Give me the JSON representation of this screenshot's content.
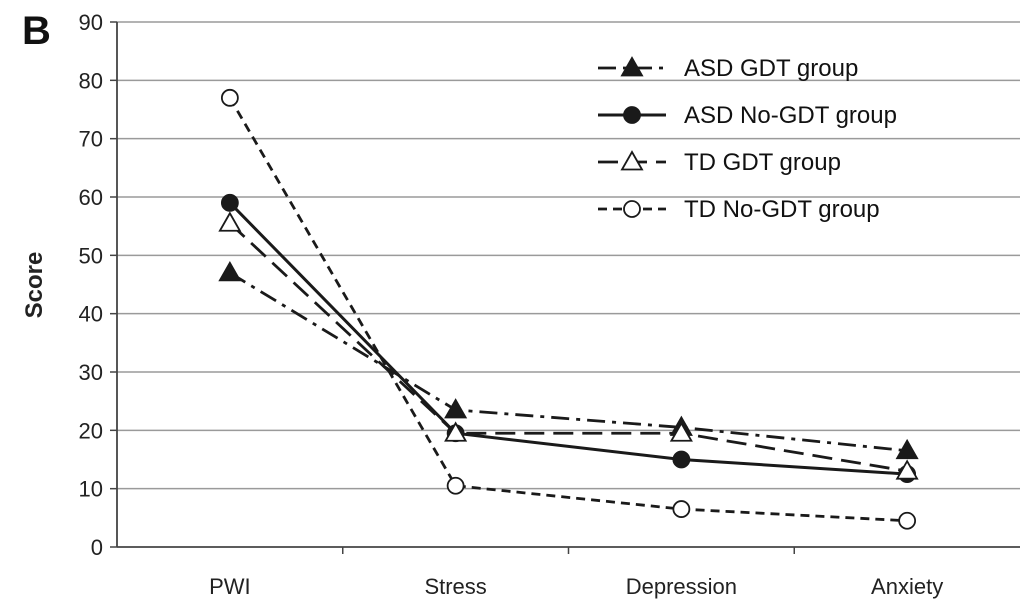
{
  "panel_label": "B",
  "chart_data": {
    "type": "line",
    "title": "",
    "xlabel": "",
    "ylabel": "Score",
    "ylim": [
      0,
      90
    ],
    "yticks": [
      0,
      10,
      20,
      30,
      40,
      50,
      60,
      70,
      80,
      90
    ],
    "grid": "horizontal",
    "legend_position": "top-right",
    "categories": [
      "PWI",
      "Stress",
      "Depression",
      "Anxiety"
    ],
    "series": [
      {
        "name": "ASD GDT group",
        "values": [
          47,
          23.5,
          20.5,
          16.5
        ],
        "line_style": "dash-dot",
        "marker": "filled-triangle",
        "color": "#1a1a1a"
      },
      {
        "name": "ASD No-GDT group",
        "values": [
          59,
          19.5,
          15,
          12.5
        ],
        "line_style": "solid",
        "marker": "filled-circle",
        "color": "#1a1a1a"
      },
      {
        "name": "TD GDT group",
        "values": [
          55.5,
          19.5,
          19.5,
          13
        ],
        "line_style": "long-dash",
        "marker": "open-triangle",
        "color": "#1a1a1a"
      },
      {
        "name": "TD No-GDT group",
        "values": [
          77,
          10.5,
          6.5,
          4.5
        ],
        "line_style": "short-dash",
        "marker": "open-circle",
        "color": "#1a1a1a"
      }
    ]
  }
}
